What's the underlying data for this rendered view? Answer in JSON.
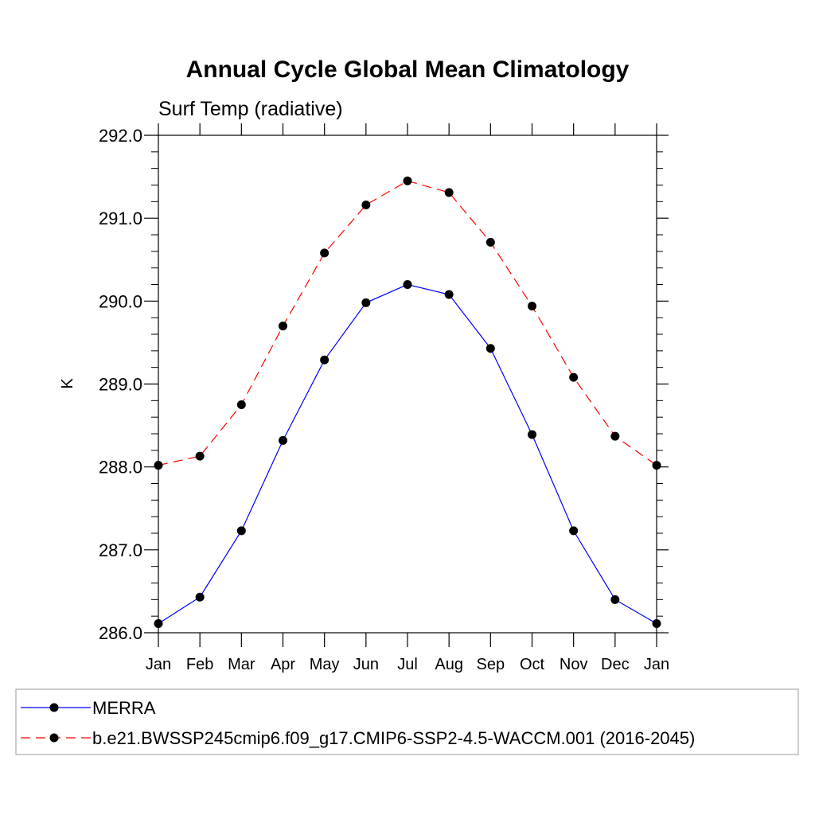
{
  "chart_data": {
    "type": "line",
    "title": "Annual Cycle Global Mean Climatology",
    "subtitle": "Surf Temp (radiative)",
    "xlabel": "",
    "ylabel": "K",
    "categories": [
      "Jan",
      "Feb",
      "Mar",
      "Apr",
      "May",
      "Jun",
      "Jul",
      "Aug",
      "Sep",
      "Oct",
      "Nov",
      "Dec",
      "Jan"
    ],
    "yticks": [
      "286.0",
      "287.0",
      "288.0",
      "289.0",
      "290.0",
      "291.0",
      "292.0"
    ],
    "ylim": [
      286.0,
      292.0
    ],
    "grid": false,
    "legend_position": "bottom",
    "series": [
      {
        "name": "MERRA",
        "color": "#0000ff",
        "dash": "solid",
        "marker": "filled-circle",
        "values": [
          286.11,
          286.43,
          287.23,
          288.32,
          289.29,
          289.98,
          290.2,
          290.08,
          289.43,
          288.39,
          287.23,
          286.4,
          286.11
        ]
      },
      {
        "name": "b.e21.BWSSP245cmip6.f09_g17.CMIP6-SSP2-4.5-WACCM.001 (2016-2045)",
        "color": "#ff0000",
        "dash": "dashed",
        "marker": "filled-circle",
        "values": [
          288.02,
          288.13,
          288.75,
          289.7,
          290.58,
          291.16,
          291.45,
          291.31,
          290.71,
          289.94,
          289.08,
          288.37,
          288.02
        ]
      }
    ]
  }
}
